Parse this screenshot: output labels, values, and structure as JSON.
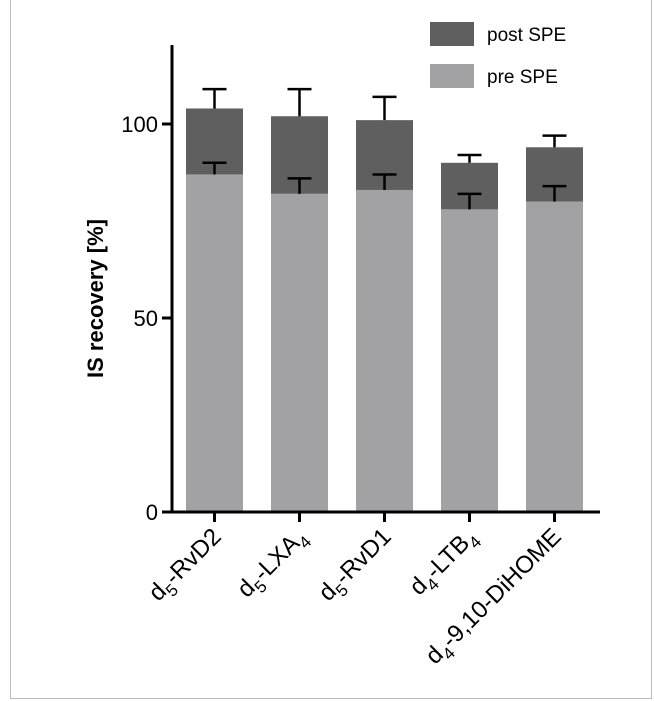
{
  "chart_data": {
    "type": "bar",
    "stacked": true,
    "categories": [
      {
        "base": "d",
        "sub": "5",
        "rest": "-RvD2",
        "sub2": ""
      },
      {
        "base": "d",
        "sub": "5",
        "rest": "-LXA",
        "sub2": "4"
      },
      {
        "base": "d",
        "sub": "5",
        "rest": "-RvD1",
        "sub2": ""
      },
      {
        "base": "d",
        "sub": "4",
        "rest": "-LTB",
        "sub2": "4"
      },
      {
        "base": "d",
        "sub": "4",
        "rest": "-9,10-DiHOME",
        "sub2": ""
      }
    ],
    "series": [
      {
        "name": "pre SPE",
        "color": "#a2a2a4",
        "values": [
          87,
          82,
          83,
          78,
          80
        ],
        "error": [
          3,
          4,
          4,
          4,
          4
        ]
      },
      {
        "name": "post SPE",
        "color": "#5f5f5f",
        "values": [
          17,
          20,
          18,
          12,
          14
        ],
        "total": [
          104,
          102,
          101,
          90,
          94
        ],
        "error": [
          5,
          7,
          6,
          2,
          3
        ]
      }
    ],
    "ylabel": "IS recovery [%]",
    "ylim": [
      0,
      120
    ],
    "yticks": [
      0,
      50,
      100
    ],
    "grid": false,
    "legend_position": "top-right",
    "legend_order": [
      "post SPE",
      "pre SPE"
    ]
  }
}
